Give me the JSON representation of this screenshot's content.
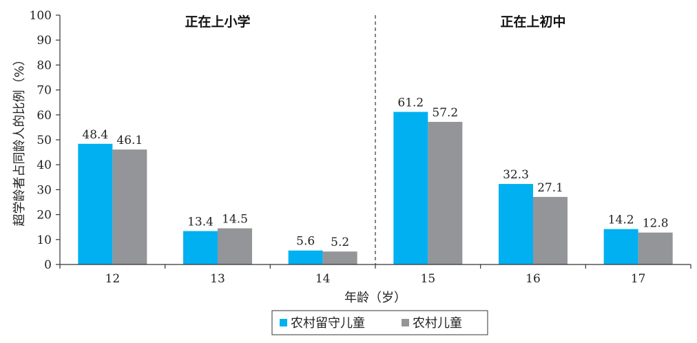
{
  "chart_data": {
    "type": "bar",
    "categories": [
      "12",
      "13",
      "14",
      "15",
      "16",
      "17"
    ],
    "series": [
      {
        "name": "农村留守儿童",
        "color": "#00B0F0",
        "values": [
          48.4,
          13.4,
          5.6,
          61.2,
          32.3,
          14.2
        ]
      },
      {
        "name": "农村儿童",
        "color": "#939598",
        "values": [
          46.1,
          14.5,
          5.2,
          57.2,
          27.1,
          12.8
        ]
      }
    ],
    "value_labels": [
      [
        "48.4",
        "13.4",
        "5.6",
        "61.2",
        "32.3",
        "14.2"
      ],
      [
        "46.1",
        "14.5",
        "5.2",
        "57.2",
        "27.1",
        "12.8"
      ]
    ],
    "yticks": [
      "0",
      "10",
      "20",
      "30",
      "40",
      "50",
      "60",
      "70",
      "80",
      "90",
      "100"
    ],
    "ylim": [
      0,
      100
    ],
    "xlabel": "年龄（岁）",
    "ylabel": "超学龄者占同龄人的比例（%）",
    "sections": [
      {
        "title": "正在上小学",
        "categories": [
          "12",
          "13",
          "14"
        ]
      },
      {
        "title": "正在上初中",
        "categories": [
          "15",
          "16",
          "17"
        ]
      }
    ],
    "divider_style": "dashed",
    "grid": false,
    "legend_position": "bottom-center"
  }
}
